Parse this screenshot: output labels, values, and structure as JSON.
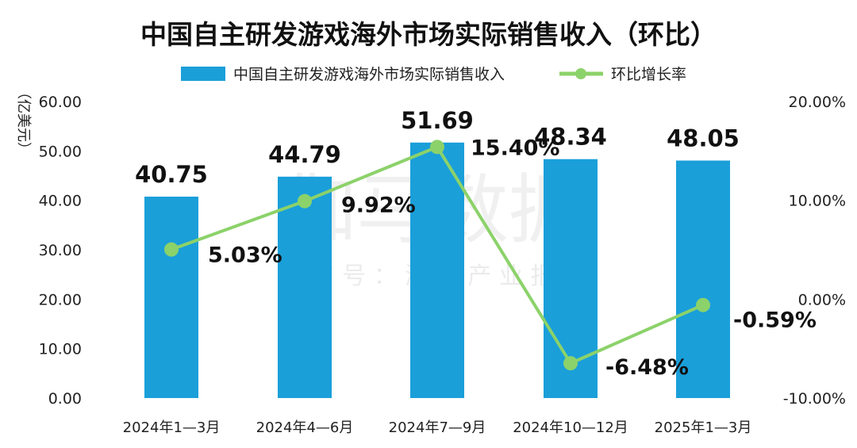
{
  "watermark": {
    "main": "伽马数据",
    "sub": "微 信 号 ： 游 戏 产 业 报 告"
  },
  "chart_data": {
    "type": "bar+line",
    "title": "中国自主研发游戏海外市场实际销售收入（环比）",
    "ylabel": "（亿美元）",
    "categories": [
      "2024年1—3月",
      "2024年4—6月",
      "2024年7—9月",
      "2024年10—12月",
      "2025年1—3月"
    ],
    "series": [
      {
        "name": "中国自主研发游戏海外市场实际销售收入",
        "kind": "bar",
        "axis": "left",
        "values": [
          40.75,
          44.79,
          51.69,
          48.34,
          48.05
        ],
        "labels": [
          "40.75",
          "44.79",
          "51.69",
          "48.34",
          "48.05"
        ],
        "color": "#1a9fd9"
      },
      {
        "name": "环比增长率",
        "kind": "line",
        "axis": "right",
        "values": [
          5.03,
          9.92,
          15.4,
          -6.48,
          -0.59
        ],
        "labels": [
          "5.03%",
          "9.92%",
          "15.40%",
          "-6.48%",
          "-0.59%"
        ],
        "color": "#8cd26a"
      }
    ],
    "y_left": {
      "min": 0,
      "max": 60,
      "ticks": [
        "0.00",
        "10.00",
        "20.00",
        "30.00",
        "40.00",
        "50.00",
        "60.00"
      ]
    },
    "y_right": {
      "min": -10,
      "max": 20,
      "ticks": [
        "-10.00%",
        "0.00%",
        "10.00%",
        "20.00%"
      ]
    },
    "legend_position": "top-center",
    "grid": false
  }
}
